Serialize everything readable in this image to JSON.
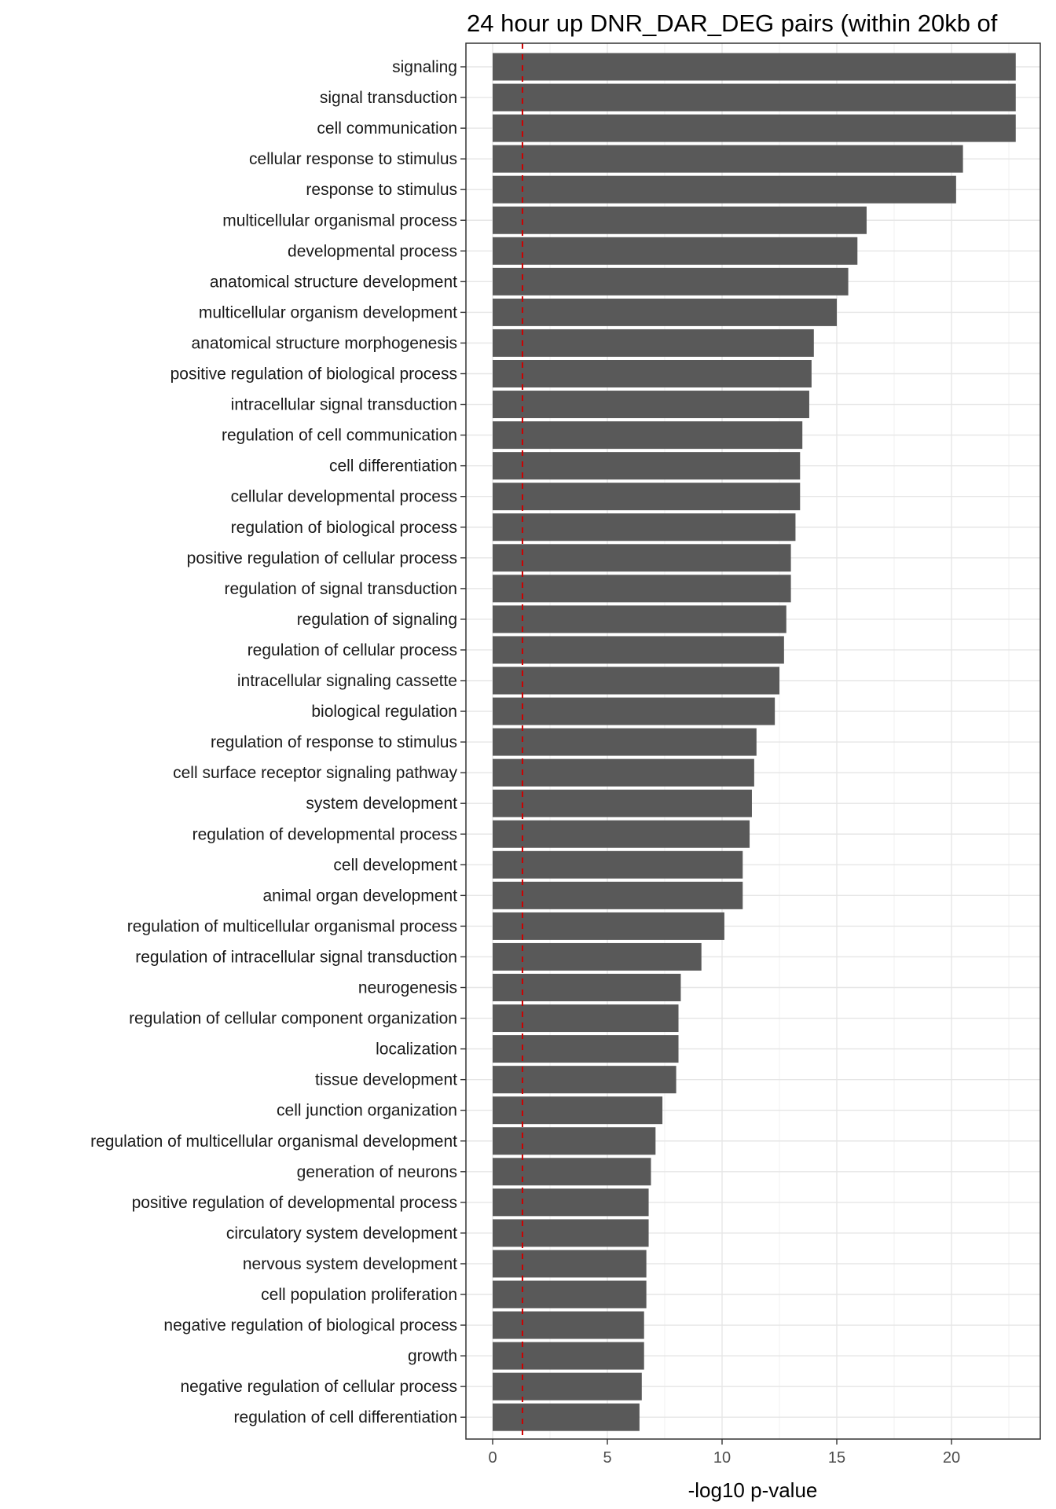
{
  "chart_data": {
    "type": "bar",
    "orientation": "horizontal",
    "title": "24 hour up DNR_DAR_DEG pairs (within 20kb of",
    "xlabel": "-log10 p-value",
    "ylabel": "",
    "xlim": [
      -1.1,
      24.1
    ],
    "xticks": [
      0,
      5,
      10,
      15,
      20
    ],
    "reference_line": {
      "value": 1.3,
      "style": "dashed",
      "color": "#cc0000"
    },
    "grid": true,
    "categories": [
      "signaling",
      "signal transduction",
      "cell communication",
      "cellular response to stimulus",
      "response to stimulus",
      "multicellular organismal process",
      "developmental process",
      "anatomical structure development",
      "multicellular organism development",
      "anatomical structure morphogenesis",
      "positive regulation of biological process",
      "intracellular signal transduction",
      "regulation of cell communication",
      "cell differentiation",
      "cellular developmental process",
      "regulation of biological process",
      "positive regulation of cellular process",
      "regulation of signal transduction",
      "regulation of signaling",
      "regulation of cellular process",
      "intracellular signaling cassette",
      "biological regulation",
      "regulation of response to stimulus",
      "cell surface receptor signaling pathway",
      "system development",
      "regulation of developmental process",
      "cell development",
      "animal organ development",
      "regulation of multicellular organismal process",
      "regulation of intracellular signal transduction",
      "neurogenesis",
      "regulation of cellular component organization",
      "localization",
      "tissue development",
      "cell junction organization",
      "regulation of multicellular organismal development",
      "generation of neurons",
      "positive regulation of developmental process",
      "circulatory system development",
      "nervous system development",
      "cell population proliferation",
      "negative regulation of biological process",
      "growth",
      "negative regulation of cellular process",
      "regulation of cell differentiation"
    ],
    "values": [
      22.8,
      22.8,
      22.8,
      20.5,
      20.2,
      16.3,
      15.9,
      15.5,
      15.0,
      14.0,
      13.9,
      13.8,
      13.5,
      13.4,
      13.4,
      13.2,
      13.0,
      13.0,
      12.8,
      12.7,
      12.5,
      12.3,
      11.5,
      11.4,
      11.3,
      11.2,
      10.9,
      10.9,
      10.1,
      9.1,
      8.2,
      8.1,
      8.1,
      8.0,
      7.4,
      7.1,
      6.9,
      6.8,
      6.8,
      6.7,
      6.7,
      6.6,
      6.6,
      6.5,
      6.4
    ],
    "bar_color": "#595959"
  }
}
